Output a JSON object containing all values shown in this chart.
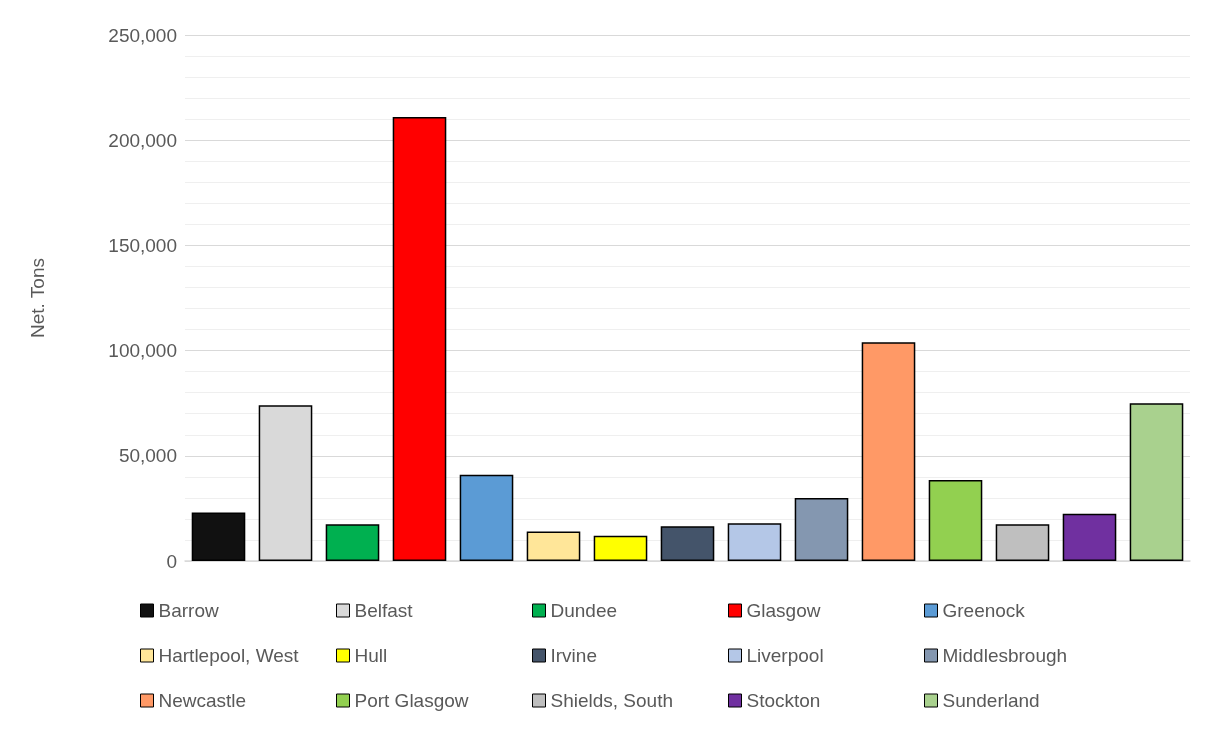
{
  "chart_data": {
    "type": "bar",
    "ylabel": "Net. Tons",
    "categories": [
      null,
      null,
      null,
      null,
      null,
      null,
      null,
      null,
      null,
      null,
      null,
      null,
      null,
      null,
      null
    ],
    "series": [
      {
        "name": "Barrow",
        "color": "#111111",
        "values": [
          23000,
          null,
          null,
          null,
          null,
          null,
          null,
          null,
          null,
          null,
          null,
          null,
          null,
          null,
          null
        ]
      },
      {
        "name": "Belfast",
        "color": "#d9d9d9",
        "values": [
          null,
          74000,
          null,
          null,
          null,
          null,
          null,
          null,
          null,
          null,
          null,
          null,
          null,
          null,
          null
        ]
      },
      {
        "name": "Dundee",
        "color": "#00b050",
        "values": [
          null,
          null,
          17500,
          null,
          null,
          null,
          null,
          null,
          null,
          null,
          null,
          null,
          null,
          null,
          null
        ]
      },
      {
        "name": "Glasgow",
        "color": "#ff0000",
        "values": [
          null,
          null,
          null,
          211000,
          null,
          null,
          null,
          null,
          null,
          null,
          null,
          null,
          null,
          null,
          null
        ]
      },
      {
        "name": "Greenock",
        "color": "#5b9bd5",
        "values": [
          null,
          null,
          null,
          null,
          41000,
          null,
          null,
          null,
          null,
          null,
          null,
          null,
          null,
          null,
          null
        ]
      },
      {
        "name": "Hartlepool, West",
        "color": "#ffe699",
        "values": [
          null,
          null,
          null,
          null,
          null,
          14000,
          null,
          null,
          null,
          null,
          null,
          null,
          null,
          null,
          null
        ]
      },
      {
        "name": "Hull",
        "color": "#ffff00",
        "values": [
          null,
          null,
          null,
          null,
          null,
          null,
          12000,
          null,
          null,
          null,
          null,
          null,
          null,
          null,
          null
        ]
      },
      {
        "name": "Irvine",
        "color": "#44546a",
        "values": [
          null,
          null,
          null,
          null,
          null,
          null,
          null,
          16500,
          null,
          null,
          null,
          null,
          null,
          null,
          null
        ]
      },
      {
        "name": "Liverpool",
        "color": "#b4c7e7",
        "values": [
          null,
          null,
          null,
          null,
          null,
          null,
          null,
          null,
          18000,
          null,
          null,
          null,
          null,
          null,
          null
        ]
      },
      {
        "name": "Middlesbrough",
        "color": "#8497b0",
        "values": [
          null,
          null,
          null,
          null,
          null,
          null,
          null,
          null,
          null,
          30000,
          null,
          null,
          null,
          null,
          null
        ]
      },
      {
        "name": "Newcastle",
        "color": "#ff9966",
        "values": [
          null,
          null,
          null,
          null,
          null,
          null,
          null,
          null,
          null,
          null,
          104000,
          null,
          null,
          null,
          null
        ]
      },
      {
        "name": "Port Glasgow",
        "color": "#92d050",
        "values": [
          null,
          null,
          null,
          null,
          null,
          null,
          null,
          null,
          null,
          null,
          null,
          38500,
          null,
          null,
          null
        ]
      },
      {
        "name": "Shields, South",
        "color": "#bfbfbf",
        "values": [
          null,
          null,
          null,
          null,
          null,
          null,
          null,
          null,
          null,
          null,
          null,
          null,
          17500,
          null,
          null
        ]
      },
      {
        "name": "Stockton",
        "color": "#7030a0",
        "values": [
          null,
          null,
          null,
          null,
          null,
          null,
          null,
          null,
          null,
          null,
          null,
          null,
          null,
          22500,
          null
        ]
      },
      {
        "name": "Sunderland",
        "color": "#a9d18e",
        "values": [
          null,
          null,
          null,
          null,
          null,
          null,
          null,
          null,
          null,
          null,
          null,
          null,
          null,
          null,
          75000
        ]
      }
    ],
    "ylim": [
      0,
      250000
    ],
    "yticks": [
      {
        "value": 0,
        "label": "0"
      },
      {
        "value": 50000,
        "label": "50,000"
      },
      {
        "value": 100000,
        "label": "100,000"
      },
      {
        "value": 150000,
        "label": "150,000"
      },
      {
        "value": 200000,
        "label": "200,000"
      },
      {
        "value": 250000,
        "label": "250,000"
      }
    ],
    "grid": true,
    "legend": "bottom"
  }
}
